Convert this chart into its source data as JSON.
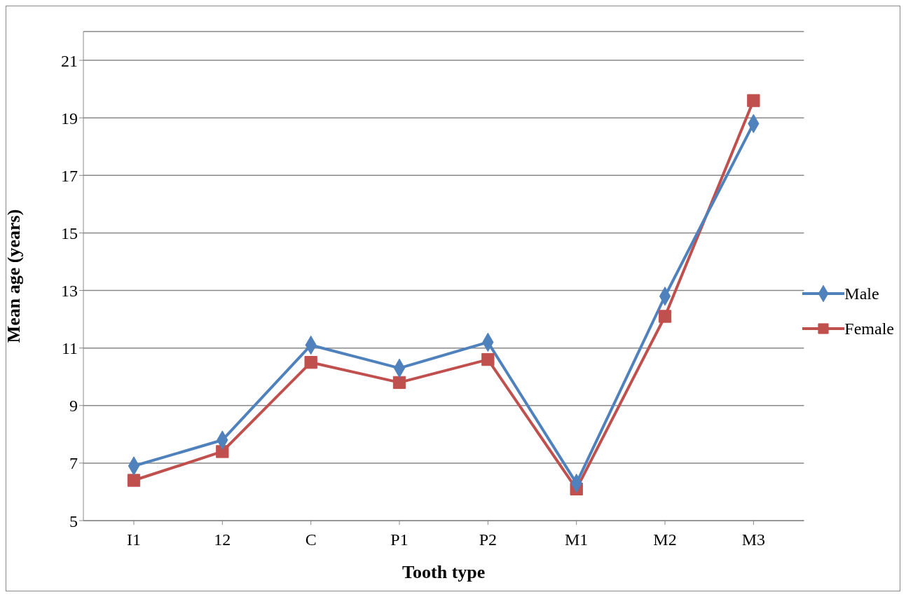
{
  "chart_data": {
    "type": "line",
    "xlabel": "Tooth type",
    "ylabel": "Mean age (years)",
    "categories": [
      "I1",
      "12",
      "C",
      "P1",
      "P2",
      "M1",
      "M2",
      "M3"
    ],
    "series": [
      {
        "name": "Male",
        "color": "#4f81bd",
        "marker": "diamond",
        "values": [
          6.9,
          7.8,
          11.1,
          10.3,
          11.2,
          6.3,
          12.8,
          18.8
        ]
      },
      {
        "name": "Female",
        "color": "#c0504d",
        "marker": "square",
        "values": [
          6.4,
          7.4,
          10.5,
          9.8,
          10.6,
          6.1,
          12.1,
          19.6
        ]
      }
    ],
    "ylim": [
      5,
      22
    ],
    "yticks": [
      5,
      7,
      9,
      11,
      13,
      15,
      17,
      19,
      21
    ],
    "grid": "y",
    "legend": "right",
    "line_style": "solid"
  }
}
